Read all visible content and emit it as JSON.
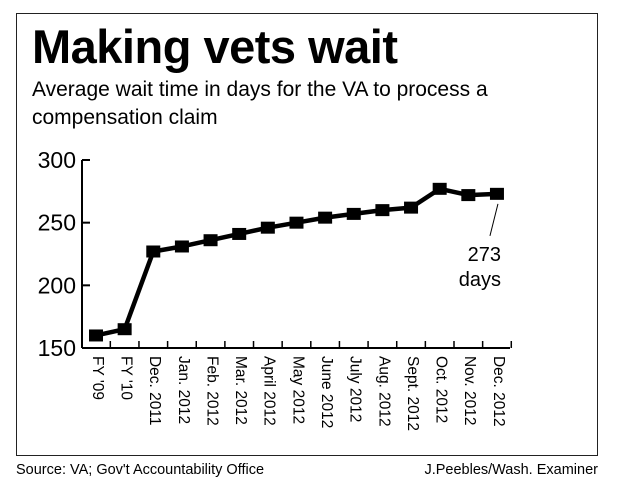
{
  "title": "Making vets wait",
  "subtitle": "Average wait time in days for the VA to process a compensation claim",
  "source": "Source: VA; Gov't Accountability Office",
  "credit": "J.Peebles/Wash. Examiner",
  "chart_data": {
    "type": "line",
    "title": "Making vets wait",
    "xlabel": "",
    "ylabel": "Average wait time (days)",
    "ylim": [
      150,
      300
    ],
    "yticks": [
      "150",
      "200",
      "250",
      "300"
    ],
    "categories": [
      "FY '09",
      "FY '10",
      "Dec. 2011",
      "Jan. 2012",
      "Feb. 2012",
      "Mar. 2012",
      "April 2012",
      "May 2012",
      "June 2012",
      "July 2012",
      "Aug. 2012",
      "Sept. 2012",
      "Oct. 2012",
      "Nov. 2012",
      "Dec. 2012"
    ],
    "series": [
      {
        "name": "Average wait time",
        "values": [
          160,
          165,
          227,
          231,
          236,
          241,
          246,
          250,
          254,
          257,
          260,
          262,
          277,
          272,
          273
        ]
      }
    ],
    "annotation": {
      "value_label": "273",
      "unit_label": "days",
      "point_index": 14
    },
    "grid": false,
    "color": "#000000"
  }
}
